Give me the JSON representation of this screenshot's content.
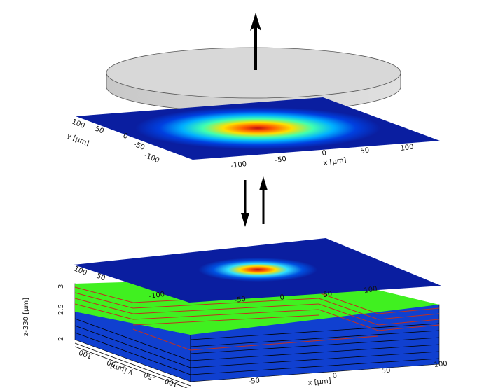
{
  "top_plane": {
    "x_ticks": [
      "-100",
      "-50",
      "0",
      "50",
      "100"
    ],
    "x_label": "x [μm]",
    "y_ticks": [
      "-100",
      "-50",
      "0",
      "50",
      "100"
    ],
    "y_label": "y [μm]"
  },
  "bottom_plane": {
    "x_ticks": [
      "-100",
      "-50",
      "0",
      "50",
      "100"
    ],
    "y_ticks": [
      "100",
      "50"
    ]
  },
  "box": {
    "x_ticks": [
      "-50",
      "0",
      "50",
      "100"
    ],
    "x_label": "x [μm]",
    "y_ticks": [
      "100",
      "50",
      "-50",
      "-100"
    ],
    "y_label": "y [μm]",
    "z_ticks": [
      "2",
      "2.5",
      "3"
    ],
    "z_label": "z-330 [μm]"
  }
}
